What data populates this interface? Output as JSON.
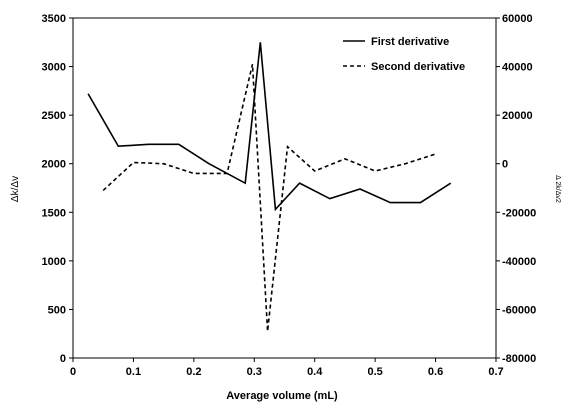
{
  "chart_data": {
    "type": "line",
    "xlabel": "Average volume (mL)",
    "ylabel_left": "Δk/Δv",
    "ylabel_right": "Δ 2k/Δv2",
    "xlim": [
      0,
      0.7
    ],
    "ylim_left": [
      0,
      3500
    ],
    "ylim_right": [
      -80000,
      60000
    ],
    "x_ticks": [
      "0",
      "0.1",
      "0.2",
      "0.3",
      "0.4",
      "0.5",
      "0.6",
      "0.7"
    ],
    "y_left_ticks": [
      "0",
      "500",
      "1000",
      "1500",
      "2000",
      "2500",
      "3000",
      "3500"
    ],
    "y_right_ticks": [
      "-80000",
      "-60000",
      "-40000",
      "-20000",
      "0",
      "20000",
      "40000",
      "60000"
    ],
    "legend_position": "top-right",
    "grid": false,
    "series": [
      {
        "name": "First derivative",
        "axis": "left",
        "line_style": "solid",
        "color": "#000000",
        "x": [
          0.025,
          0.075,
          0.125,
          0.175,
          0.225,
          0.285,
          0.31,
          0.335,
          0.375,
          0.425,
          0.475,
          0.525,
          0.575,
          0.625
        ],
        "y": [
          2720,
          2180,
          2200,
          2200,
          2000,
          1800,
          3250,
          1530,
          1800,
          1640,
          1740,
          1600,
          1600,
          1800
        ]
      },
      {
        "name": "Second derivative",
        "axis": "right",
        "line_style": "dashed",
        "color": "#000000",
        "x": [
          0.05,
          0.1,
          0.15,
          0.2,
          0.255,
          0.297,
          0.322,
          0.355,
          0.4,
          0.45,
          0.5,
          0.55,
          0.6
        ],
        "y": [
          -11000,
          500,
          0,
          -4000,
          -4000,
          41000,
          -69000,
          7000,
          -3000,
          2000,
          -3000,
          0,
          4000
        ]
      }
    ]
  }
}
